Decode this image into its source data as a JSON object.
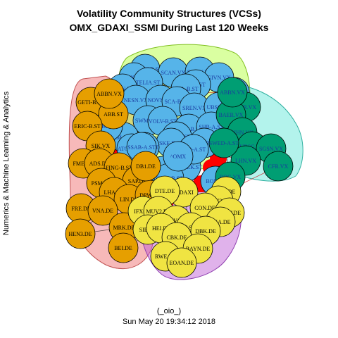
{
  "title_line1": "Volatility Community Structures (VCSs)",
  "title_line2": "OMX_GDAXI_SSMI During Last 120 Weeks",
  "side_label": "Numerics & Machine Learning & Analytics",
  "footer_line1": "(_oio_)",
  "footer_line2": "Sun May 20 19:34:12 2018",
  "colors": {
    "orange_node": "#E69F00",
    "blue_node": "#56B4E9",
    "green_node": "#009E73",
    "yellow_node": "#F0E442",
    "red_node": "#FF0000",
    "blue_label": "#1a3aa0",
    "region_red": "#F08080",
    "region_green": "#ADFF2F",
    "region_cyan": "#40E0D0",
    "region_purple": "#BA55D3",
    "edge_red": "#D00000",
    "edge_dark": "#202020"
  },
  "nodes": [
    {
      "label": "ALIV-SDB.ST",
      "group": "blue"
    },
    {
      "label": "SCAN.VX",
      "group": "blue"
    },
    {
      "label": "SCMN.VX",
      "group": "blue"
    },
    {
      "label": "GIVN.VX",
      "group": "blue"
    },
    {
      "label": "ELUX-B.ST",
      "group": "blue"
    },
    {
      "label": "TELIA.ST",
      "group": "blue"
    },
    {
      "label": "AZN.ST",
      "group": "blue"
    },
    {
      "label": "LONN.VX",
      "group": "blue"
    },
    {
      "label": "SKA-B.ST",
      "group": "blue"
    },
    {
      "label": "ZURN.VX",
      "group": "blue"
    },
    {
      "label": "NESN.VX",
      "group": "blue"
    },
    {
      "label": "NOVN.VX",
      "group": "blue"
    },
    {
      "label": "SCA-B.ST",
      "group": "blue"
    },
    {
      "label": "SREN.VX",
      "group": "blue"
    },
    {
      "label": "UBSG.VX",
      "group": "blue"
    },
    {
      "label": "SWMA.ST",
      "group": "blue"
    },
    {
      "label": "VOLV-B.ST",
      "group": "blue"
    },
    {
      "label": "NDA-SEK.ST",
      "group": "blue"
    },
    {
      "label": "INVE-B.ST",
      "group": "blue"
    },
    {
      "label": "HM-B.ST",
      "group": "blue"
    },
    {
      "label": "ASSA-B.ST",
      "group": "blue"
    },
    {
      "label": "SKF-B.ST",
      "group": "blue"
    },
    {
      "label": "SHB-A.ST",
      "group": "blue"
    },
    {
      "label": "KINV-B.ST",
      "group": "blue"
    },
    {
      "label": "SEB-A.ST",
      "group": "blue"
    },
    {
      "label": "SAND.ST",
      "group": "blue"
    },
    {
      "label": "SECU-B.ST",
      "group": "blue"
    },
    {
      "label": "ATCO-B.ST",
      "group": "blue"
    },
    {
      "label": "ATCO-A.ST",
      "group": "blue"
    },
    {
      "label": "SSAB-A.ST",
      "group": "blue"
    },
    {
      "label": "BOL.ST",
      "group": "blue"
    },
    {
      "label": "^OMX",
      "group": "blue"
    },
    {
      "label": "ERIC-B.ST",
      "group": "blue"
    },
    {
      "label": "UHR.VX",
      "group": "green"
    },
    {
      "label": "BAER.VX",
      "group": "green"
    },
    {
      "label": "SIHN.VX",
      "group": "green"
    },
    {
      "label": "UBSG.VX",
      "group": "green"
    },
    {
      "label": "SGSN.VX",
      "group": "green"
    },
    {
      "label": "CFR.VX",
      "group": "green"
    },
    {
      "label": "LHN.VX",
      "group": "green"
    },
    {
      "label": "SWED-A.ST",
      "group": "green"
    },
    {
      "label": "ROG.VX",
      "group": "green"
    },
    {
      "label": "ABBN.VX",
      "group": "green"
    },
    {
      "label": "GETI-B.ST",
      "group": "orange"
    },
    {
      "label": "ABB.ST",
      "group": "orange"
    },
    {
      "label": "ERIC-B.ST",
      "group": "orange"
    },
    {
      "label": "SIK.VX",
      "group": "orange"
    },
    {
      "label": "FME.DE",
      "group": "orange"
    },
    {
      "label": "ADS.DE",
      "group": "orange"
    },
    {
      "label": "FING-B.ST",
      "group": "orange"
    },
    {
      "label": "SAP.DE",
      "group": "orange"
    },
    {
      "label": "PSM.DE",
      "group": "orange"
    },
    {
      "label": "LHA.DE",
      "group": "orange"
    },
    {
      "label": "LIN.DE",
      "group": "orange"
    },
    {
      "label": "DPW.DE",
      "group": "orange"
    },
    {
      "label": "FRE.DE",
      "group": "orange"
    },
    {
      "label": "VNA.DE",
      "group": "orange"
    },
    {
      "label": "HEN3.DE",
      "group": "orange"
    },
    {
      "label": "MRK.DE",
      "group": "orange"
    },
    {
      "label": "BEI.DE",
      "group": "orange"
    },
    {
      "label": "DB1.DE",
      "group": "orange"
    },
    {
      "label": "ABBN.VX",
      "group": "orange"
    },
    {
      "label": "^GDAXI",
      "group": "yellow"
    },
    {
      "label": "DTE.DE",
      "group": "yellow"
    },
    {
      "label": "DAI.DE",
      "group": "yellow"
    },
    {
      "label": "VOW3.DE",
      "group": "yellow"
    },
    {
      "label": "CON.DE",
      "group": "yellow"
    },
    {
      "label": "BMW.DE",
      "group": "yellow"
    },
    {
      "label": "IFX.DE",
      "group": "yellow"
    },
    {
      "label": "MUV2.DE",
      "group": "yellow"
    },
    {
      "label": "ALV.DE",
      "group": "yellow"
    },
    {
      "label": "TKA.DE",
      "group": "yellow"
    },
    {
      "label": "BAS.DE",
      "group": "yellow"
    },
    {
      "label": "SIE.DE",
      "group": "yellow"
    },
    {
      "label": "HEI.DE",
      "group": "yellow"
    },
    {
      "label": "DBK.DE",
      "group": "yellow"
    },
    {
      "label": "CBK.DE",
      "group": "yellow"
    },
    {
      "label": "BAYN.DE",
      "group": "yellow"
    },
    {
      "label": "RWE.DE",
      "group": "yellow"
    },
    {
      "label": "EOAN.DE",
      "group": "yellow"
    }
  ]
}
